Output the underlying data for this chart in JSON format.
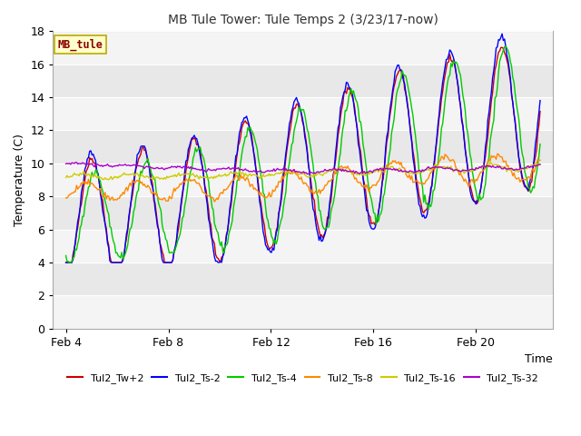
{
  "title": "MB Tule Tower: Tule Temps 2 (3/23/17-now)",
  "xlabel": "Time",
  "ylabel": "Temperature (C)",
  "ylim": [
    0,
    18
  ],
  "yticks": [
    0,
    2,
    4,
    6,
    8,
    10,
    12,
    14,
    16,
    18
  ],
  "plot_bg": "#e8e8e8",
  "legend_box_color": "#ffffcc",
  "legend_box_edge": "#bbaa00",
  "legend_label_color": "#880000",
  "series_order": [
    "Tul2_Tw+2",
    "Tul2_Ts-2",
    "Tul2_Ts-4",
    "Tul2_Ts-8",
    "Tul2_Ts-16",
    "Tul2_Ts-32"
  ],
  "series": {
    "Tul2_Tw+2": {
      "color": "#cc0000",
      "lw": 1.0
    },
    "Tul2_Ts-2": {
      "color": "#0000ff",
      "lw": 1.0
    },
    "Tul2_Ts-4": {
      "color": "#00cc00",
      "lw": 1.0
    },
    "Tul2_Ts-8": {
      "color": "#ff8800",
      "lw": 1.0
    },
    "Tul2_Ts-16": {
      "color": "#cccc00",
      "lw": 1.0
    },
    "Tul2_Ts-32": {
      "color": "#aa00cc",
      "lw": 1.0
    }
  },
  "x_tick_labels": [
    "Feb 4",
    "Feb 8",
    "Feb 12",
    "Feb 16",
    "Feb 20"
  ],
  "x_tick_positions": [
    0,
    4,
    8,
    12,
    16
  ],
  "xlim": [
    -0.5,
    19
  ],
  "shade_bands_white": [
    [
      0,
      2
    ],
    [
      4,
      6
    ],
    [
      8,
      10
    ],
    [
      12,
      14
    ],
    [
      16,
      18
    ]
  ]
}
